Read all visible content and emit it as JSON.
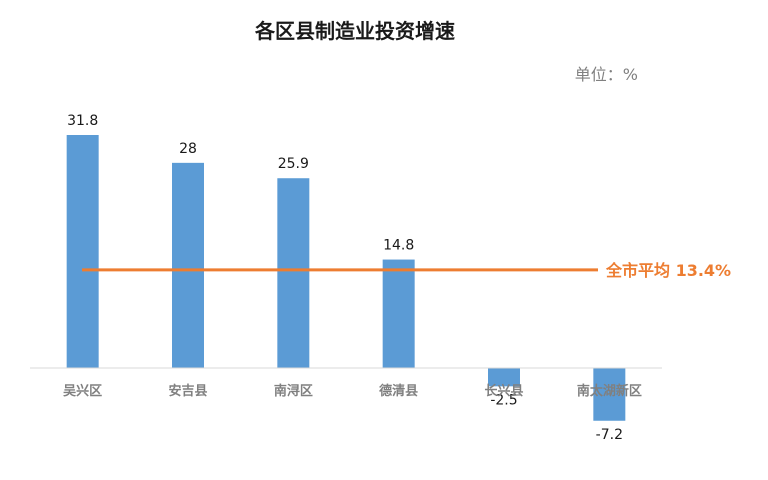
{
  "chart_data": {
    "type": "bar",
    "title": "各区县制造业投资增速",
    "unit_label": "单位：%",
    "categories": [
      "吴兴区",
      "安吉县",
      "南浔区",
      "德清县",
      "长兴县",
      "南太湖新区"
    ],
    "values": [
      31.8,
      28,
      25.9,
      14.8,
      -2.5,
      -7.2
    ],
    "value_labels": [
      "31.8",
      "28",
      "25.9",
      "14.8",
      "-2.5",
      "-7.2"
    ],
    "reference_line": {
      "label": "全市平均 13.4%",
      "value": 13.4
    },
    "ylim": [
      -7.2,
      31.8
    ],
    "grid": false,
    "legend": "none",
    "colors": {
      "bar": "#5b9bd5",
      "reference": "#ed7d31",
      "axis": "#d9d9d9"
    }
  }
}
